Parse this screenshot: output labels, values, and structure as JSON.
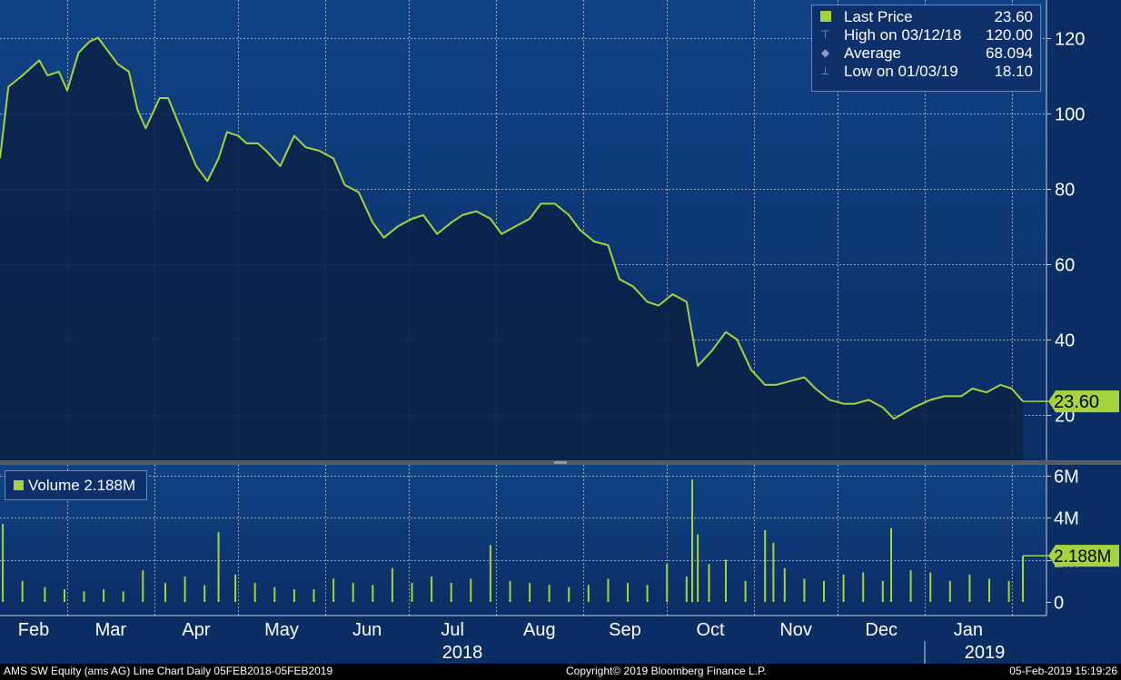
{
  "colors": {
    "price_line": "#a6d33c",
    "volume_bar": "#a6d33c",
    "price_fill": "#0b2247",
    "background_top": "#0f4386",
    "background_bottom": "#0a2d64",
    "grid": "#ffffff",
    "badge_text": "#000000"
  },
  "legend": {
    "items": [
      {
        "icon": "filled-square-icon",
        "label": "Last Price",
        "value": "23.60"
      },
      {
        "icon": "high-marker-icon",
        "label": "High on 03/12/18",
        "value": "120.00"
      },
      {
        "icon": "average-marker-icon",
        "label": "Average",
        "value": "68.094"
      },
      {
        "icon": "low-marker-icon",
        "label": "Low on 01/03/19",
        "value": "18.10"
      }
    ]
  },
  "volume_legend": {
    "icon": "filled-square-icon",
    "label": "Volume 2.188M"
  },
  "footer": {
    "left": "AMS SW Equity (ams AG) Line Chart  Daily 05FEB2018-05FEB2019",
    "center": "Copyright© 2019 Bloomberg Finance L.P.",
    "right": "05-Feb-2019 15:19:26"
  },
  "chart_data": [
    {
      "type": "line",
      "series": [
        {
          "name": "Last Price"
        }
      ],
      "x": [
        "2018-02-05",
        "2018-02-08",
        "2018-02-13",
        "2018-02-19",
        "2018-02-22",
        "2018-02-26",
        "2018-03-01",
        "2018-03-05",
        "2018-03-09",
        "2018-03-12",
        "2018-03-15",
        "2018-03-19",
        "2018-03-23",
        "2018-03-26",
        "2018-03-29",
        "2018-04-03",
        "2018-04-06",
        "2018-04-11",
        "2018-04-16",
        "2018-04-20",
        "2018-04-24",
        "2018-04-27",
        "2018-05-01",
        "2018-05-04",
        "2018-05-08",
        "2018-05-11",
        "2018-05-16",
        "2018-05-21",
        "2018-05-25",
        "2018-05-30",
        "2018-06-04",
        "2018-06-08",
        "2018-06-13",
        "2018-06-18",
        "2018-06-22",
        "2018-06-27",
        "2018-07-02",
        "2018-07-06",
        "2018-07-11",
        "2018-07-16",
        "2018-07-20",
        "2018-07-25",
        "2018-07-30",
        "2018-08-03",
        "2018-08-08",
        "2018-08-13",
        "2018-08-17",
        "2018-08-22",
        "2018-08-27",
        "2018-08-31",
        "2018-09-05",
        "2018-09-10",
        "2018-09-14",
        "2018-09-19",
        "2018-09-24",
        "2018-09-28",
        "2018-10-03",
        "2018-10-08",
        "2018-10-12",
        "2018-10-17",
        "2018-10-22",
        "2018-10-26",
        "2018-10-31",
        "2018-11-05",
        "2018-11-09",
        "2018-11-14",
        "2018-11-19",
        "2018-11-23",
        "2018-11-28",
        "2018-12-03",
        "2018-12-07",
        "2018-12-12",
        "2018-12-17",
        "2018-12-21",
        "2018-12-28",
        "2019-01-03",
        "2019-01-08",
        "2019-01-14",
        "2019-01-18",
        "2019-01-23",
        "2019-01-28",
        "2019-02-01",
        "2019-02-05"
      ],
      "values": [
        88,
        107,
        110,
        114,
        110,
        111,
        106,
        116,
        119,
        120,
        117,
        113,
        111,
        101,
        96,
        104,
        104,
        95,
        86,
        82,
        88,
        95,
        94,
        92,
        92,
        90,
        86,
        94,
        91,
        90,
        88,
        81,
        79,
        71,
        67,
        70,
        72,
        73,
        68,
        71,
        73,
        74,
        72,
        68,
        70,
        72,
        76,
        76,
        73,
        69,
        66,
        65,
        56,
        54,
        50,
        49,
        52,
        50,
        33,
        37,
        42,
        40,
        32,
        28,
        28,
        29,
        30,
        27,
        24,
        23,
        23,
        24,
        22,
        19,
        22,
        24,
        25,
        25,
        27,
        26,
        28,
        27,
        23.6
      ],
      "high": {
        "date": "03/12/18",
        "value": 120.0
      },
      "average": 68.094,
      "low": {
        "date": "01/03/19",
        "value": 18.1
      },
      "last_price_label": "23.60",
      "ylim": [
        8,
        130
      ],
      "yticks": [
        20,
        40,
        60,
        80,
        100,
        120
      ],
      "grid": true,
      "legend_position": "top-right"
    },
    {
      "type": "bar",
      "series": [
        {
          "name": "Volume"
        }
      ],
      "x": [
        "2018-02-06",
        "2018-02-13",
        "2018-02-21",
        "2018-02-28",
        "2018-03-07",
        "2018-03-14",
        "2018-03-21",
        "2018-03-28",
        "2018-04-05",
        "2018-04-12",
        "2018-04-19",
        "2018-04-24",
        "2018-04-30",
        "2018-05-07",
        "2018-05-14",
        "2018-05-21",
        "2018-05-28",
        "2018-06-04",
        "2018-06-11",
        "2018-06-18",
        "2018-06-25",
        "2018-07-02",
        "2018-07-09",
        "2018-07-16",
        "2018-07-23",
        "2018-07-30",
        "2018-08-06",
        "2018-08-13",
        "2018-08-20",
        "2018-08-27",
        "2018-09-03",
        "2018-09-10",
        "2018-09-17",
        "2018-09-24",
        "2018-10-01",
        "2018-10-08",
        "2018-10-10",
        "2018-10-12",
        "2018-10-16",
        "2018-10-22",
        "2018-10-29",
        "2018-11-05",
        "2018-11-08",
        "2018-11-12",
        "2018-11-19",
        "2018-11-26",
        "2018-12-03",
        "2018-12-10",
        "2018-12-17",
        "2018-12-20",
        "2018-12-27",
        "2019-01-03",
        "2019-01-10",
        "2019-01-17",
        "2019-01-24",
        "2019-01-31",
        "2019-02-05"
      ],
      "values": [
        3.7,
        1.0,
        0.7,
        0.6,
        0.5,
        0.6,
        0.5,
        1.5,
        0.9,
        1.2,
        0.8,
        3.3,
        1.3,
        0.9,
        0.7,
        0.6,
        0.6,
        1.1,
        0.9,
        0.8,
        1.6,
        0.9,
        1.2,
        0.9,
        1.1,
        2.7,
        1.0,
        0.9,
        0.8,
        0.7,
        0.8,
        1.1,
        0.9,
        0.8,
        1.8,
        1.2,
        5.8,
        3.2,
        1.8,
        2.0,
        1.0,
        3.4,
        2.8,
        1.6,
        1.1,
        1.0,
        1.3,
        1.4,
        1.0,
        3.5,
        1.5,
        1.4,
        1.0,
        1.3,
        1.1,
        1.0,
        2.188
      ],
      "last_volume_label": "2.188M",
      "ylim": [
        0,
        6.5
      ],
      "ytick_labels": [
        "0",
        "2M",
        "4M",
        "6M"
      ],
      "grid": true
    }
  ],
  "x_axis": {
    "months": [
      "Feb",
      "Mar",
      "Apr",
      "May",
      "Jun",
      "Jul",
      "Aug",
      "Sep",
      "Oct",
      "Nov",
      "Dec",
      "Jan"
    ],
    "years": [
      "2018",
      "2019"
    ]
  }
}
